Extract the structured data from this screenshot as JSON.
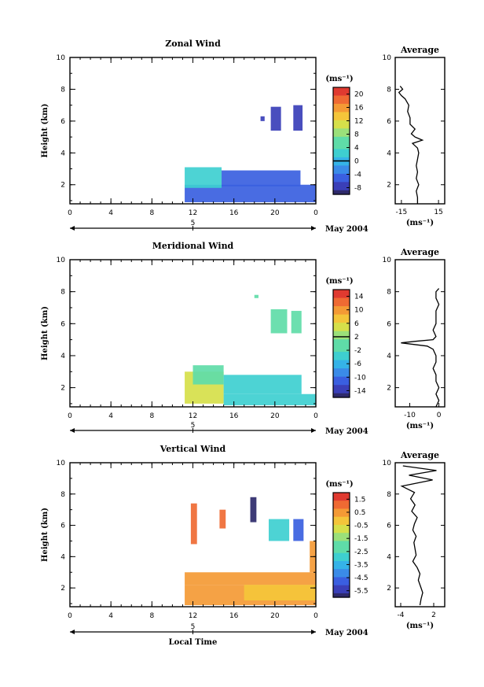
{
  "chart_data": [
    {
      "type": "heatmap",
      "title": "Zonal Wind",
      "ylabel": "Height (km)",
      "xlim": [
        0,
        24
      ],
      "ylim": [
        0.8,
        10
      ],
      "xticks": [
        "0",
        "4",
        "8",
        "12",
        "16",
        "20",
        "0"
      ],
      "yticks": [
        "2",
        "4",
        "6",
        "8",
        "10"
      ],
      "date_marker": "5",
      "date_label": "May 2004",
      "colorbar": {
        "unit": "(ms⁻¹)",
        "ticks": [
          "20",
          "16",
          "12",
          "8",
          "4",
          "0",
          "-4",
          "-8"
        ],
        "range": [
          -10,
          22
        ],
        "zero_line": 0
      },
      "regions": [
        {
          "x0": 11.2,
          "x1": 24,
          "y0": 0.9,
          "y1": 2.0,
          "value": -6
        },
        {
          "x0": 11.2,
          "x1": 14.8,
          "y0": 1.8,
          "y1": 3.1,
          "value": 4
        },
        {
          "x0": 14.8,
          "x1": 22.5,
          "y0": 1.9,
          "y1": 2.9,
          "value": -5
        },
        {
          "x0": 19.6,
          "x1": 20.6,
          "y0": 5.4,
          "y1": 6.9,
          "value": -8
        },
        {
          "x0": 21.8,
          "x1": 22.7,
          "y0": 5.4,
          "y1": 7.0,
          "value": -8
        },
        {
          "x0": 18.6,
          "x1": 19.0,
          "y0": 6.0,
          "y1": 6.3,
          "value": -8
        }
      ],
      "average": {
        "title": "Average",
        "xlabel": "(ms⁻¹)",
        "xticks": [
          "-15",
          "15"
        ],
        "yticks": [
          "2",
          "4",
          "6",
          "8",
          "10"
        ],
        "xlim": [
          -20,
          20
        ],
        "y": [
          0.8,
          1.2,
          1.6,
          2.0,
          2.4,
          2.8,
          3.2,
          3.6,
          4.0,
          4.3,
          4.6,
          4.8,
          5.0,
          5.2,
          5.5,
          5.8,
          6.2,
          6.6,
          7.0,
          7.4,
          7.6,
          7.8,
          8.0,
          8.2
        ],
        "x": [
          -2,
          -2,
          -3,
          -1,
          -3,
          -2,
          -3,
          -2,
          -1,
          -2,
          -6,
          2,
          -4,
          -7,
          -4,
          -8,
          -8,
          -10,
          -9,
          -12,
          -15,
          -17,
          -14,
          -16
        ]
      }
    },
    {
      "type": "heatmap",
      "title": "Meridional Wind",
      "ylabel": "Height (km)",
      "xlim": [
        0,
        24
      ],
      "ylim": [
        0.8,
        10
      ],
      "xticks": [
        "0",
        "4",
        "8",
        "12",
        "16",
        "20",
        "0"
      ],
      "yticks": [
        "2",
        "4",
        "6",
        "8",
        "10"
      ],
      "date_marker": "5",
      "date_label": "May 2004",
      "colorbar": {
        "unit": "(ms⁻¹)",
        "ticks": [
          "14",
          "10",
          "6",
          "2",
          "-2",
          "-6",
          "-10",
          "-14"
        ],
        "range": [
          -16,
          16
        ],
        "zero_line": 2
      },
      "regions": [
        {
          "x0": 11.2,
          "x1": 15.0,
          "y0": 1.0,
          "y1": 3.0,
          "value": 6
        },
        {
          "x0": 12.0,
          "x1": 15.0,
          "y0": 2.2,
          "y1": 3.4,
          "value": 0
        },
        {
          "x0": 15.0,
          "x1": 24,
          "y0": 0.9,
          "y1": 1.6,
          "value": -4
        },
        {
          "x0": 15.0,
          "x1": 22.6,
          "y0": 1.6,
          "y1": 2.8,
          "value": -2
        },
        {
          "x0": 19.6,
          "x1": 21.2,
          "y0": 5.4,
          "y1": 6.9,
          "value": 0
        },
        {
          "x0": 21.6,
          "x1": 22.6,
          "y0": 5.4,
          "y1": 6.8,
          "value": 0
        },
        {
          "x0": 18.0,
          "x1": 18.4,
          "y0": 7.6,
          "y1": 7.8,
          "value": 0
        }
      ],
      "average": {
        "title": "Average",
        "xlabel": "(ms⁻¹)",
        "xticks": [
          "-10",
          "0"
        ],
        "yticks": [
          "2",
          "4",
          "6",
          "8",
          "10"
        ],
        "xlim": [
          -15,
          2
        ],
        "y": [
          0.8,
          1.2,
          1.6,
          2.0,
          2.4,
          2.8,
          3.2,
          3.6,
          4.0,
          4.4,
          4.6,
          4.8,
          4.9,
          5.0,
          5.2,
          5.6,
          6.0,
          6.4,
          6.8,
          7.2,
          7.6,
          8.0,
          8.2
        ],
        "x": [
          -1,
          0,
          -1,
          0,
          -1,
          -1,
          -2,
          -1,
          -1,
          -2,
          -4,
          -13,
          -8,
          -2,
          -1,
          -2,
          -1,
          -1,
          -1,
          0,
          -1,
          -1,
          0
        ]
      }
    },
    {
      "type": "heatmap",
      "title": "Vertical Wind",
      "ylabel": "Height (km)",
      "xlabel": "Local Time",
      "xlim": [
        0,
        24
      ],
      "ylim": [
        0.8,
        10
      ],
      "xticks": [
        "0",
        "4",
        "8",
        "12",
        "16",
        "20",
        "0"
      ],
      "yticks": [
        "2",
        "4",
        "6",
        "8",
        "10"
      ],
      "date_marker": "5",
      "date_label": "May 2004",
      "colorbar": {
        "unit": "(ms⁻¹)",
        "ticks": [
          "1.5",
          "0.5",
          "-0.5",
          "-1.5",
          "-2.5",
          "-3.5",
          "-4.5",
          "-5.5"
        ],
        "range": [
          -6,
          2
        ]
      },
      "regions": [
        {
          "x0": 11.2,
          "x1": 24,
          "y0": 0.9,
          "y1": 2.2,
          "value": 0.6
        },
        {
          "x0": 11.2,
          "x1": 24,
          "y0": 2.2,
          "y1": 3.0,
          "value": 0.9
        },
        {
          "x0": 17.0,
          "x1": 24,
          "y0": 1.2,
          "y1": 2.2,
          "value": 0.3
        },
        {
          "x0": 19.4,
          "x1": 21.4,
          "y0": 5.0,
          "y1": 6.4,
          "value": -3
        },
        {
          "x0": 21.8,
          "x1": 22.8,
          "y0": 5.0,
          "y1": 6.4,
          "value": -4.5
        },
        {
          "x0": 17.6,
          "x1": 18.2,
          "y0": 6.2,
          "y1": 7.8,
          "value": -6
        },
        {
          "x0": 11.8,
          "x1": 12.4,
          "y0": 4.8,
          "y1": 7.4,
          "value": 1.5
        },
        {
          "x0": 14.6,
          "x1": 15.2,
          "y0": 5.8,
          "y1": 7.0,
          "value": 1.5
        },
        {
          "x0": 23.4,
          "x1": 24,
          "y0": 3.0,
          "y1": 5.0,
          "value": 0.9
        }
      ],
      "average": {
        "title": "Average",
        "xlabel": "(ms⁻¹)",
        "xticks": [
          "-4",
          "2"
        ],
        "yticks": [
          "2",
          "4",
          "6",
          "8",
          "10"
        ],
        "xlim": [
          -5,
          4
        ],
        "y": [
          0.9,
          1.3,
          1.7,
          2.1,
          2.5,
          2.9,
          3.3,
          3.7,
          4.1,
          4.5,
          4.9,
          5.3,
          5.7,
          6.1,
          6.5,
          6.9,
          7.3,
          7.7,
          8.1,
          8.5,
          8.9,
          9.2,
          9.5,
          9.8
        ],
        "x": [
          -0.5,
          -0.3,
          0,
          -0.4,
          -0.8,
          -0.5,
          -1.0,
          -1.8,
          -1.2,
          -1.4,
          -1.6,
          -1.2,
          -1.8,
          -1.5,
          -1.0,
          -2.0,
          -1.4,
          -2.2,
          -1.5,
          -3.8,
          1.8,
          -2.5,
          2.5,
          -3.6
        ]
      }
    }
  ]
}
